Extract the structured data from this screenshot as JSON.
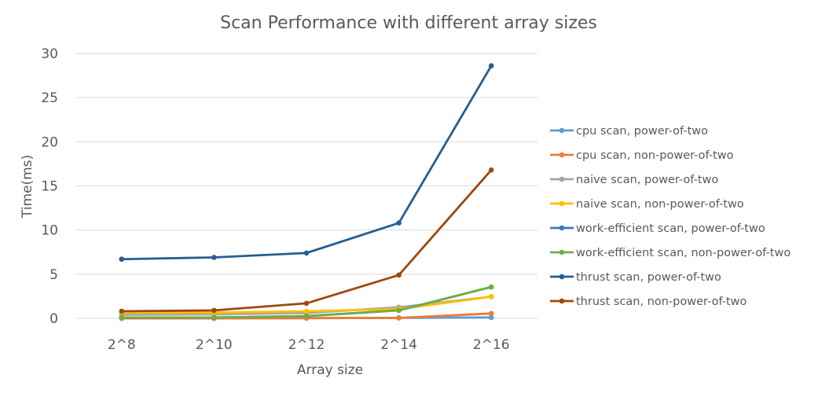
{
  "chart_data": {
    "type": "line",
    "title": "Scan Performance with different array sizes",
    "xlabel": "Array size",
    "ylabel": "Time(ms)",
    "categories": [
      "2^8",
      "2^10",
      "2^12",
      "2^14",
      "2^16"
    ],
    "ylim": [
      0,
      30
    ],
    "yticks": [
      0,
      5,
      10,
      15,
      20,
      25,
      30
    ],
    "grid": true,
    "legend_position": "right",
    "series": [
      {
        "name": "cpu scan, power-of-two",
        "color": "#5B9BD5",
        "values": [
          0.0,
          0.0,
          0.02,
          0.05,
          0.1
        ]
      },
      {
        "name": "cpu scan, non-power-of-two",
        "color": "#ED7D31",
        "values": [
          0.0,
          0.0,
          0.02,
          0.05,
          0.55
        ]
      },
      {
        "name": "naive scan, power-of-two",
        "color": "#A5A5A5",
        "values": [
          0.4,
          0.45,
          0.6,
          1.25,
          2.45
        ]
      },
      {
        "name": "naive scan, non-power-of-two",
        "color": "#FFC000",
        "values": [
          0.65,
          0.65,
          0.8,
          1.05,
          2.45
        ]
      },
      {
        "name": "work-efficient scan, power-of-two",
        "color": "#4472C4",
        "values": [
          0.1,
          0.1,
          0.25,
          0.9,
          3.55
        ]
      },
      {
        "name": "work-efficient scan, non-power-of-two",
        "color": "#70AD47",
        "values": [
          0.1,
          0.1,
          0.25,
          0.9,
          3.55
        ]
      },
      {
        "name": "thrust scan, power-of-two",
        "color": "#255E91",
        "values": [
          6.7,
          6.9,
          7.4,
          10.8,
          28.6
        ]
      },
      {
        "name": "thrust scan, non-power-of-two",
        "color": "#9E480E",
        "values": [
          0.8,
          0.9,
          1.7,
          4.9,
          16.8
        ]
      }
    ]
  }
}
